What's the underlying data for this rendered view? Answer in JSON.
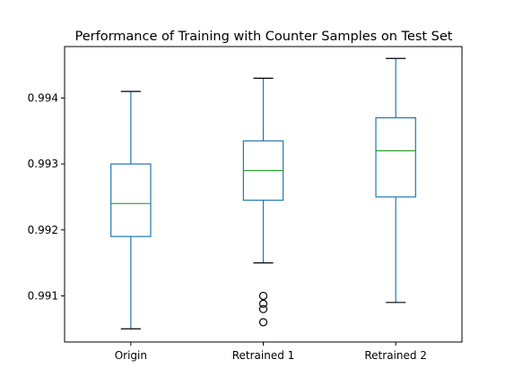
{
  "chart_data": {
    "type": "box",
    "title": "Performance of Training with Counter Samples on Test Set",
    "xlabel": "",
    "ylabel": "",
    "ylim": [
      0.9903,
      0.99478
    ],
    "yticks": [
      0.991,
      0.992,
      0.993,
      0.994
    ],
    "ytick_labels": [
      "0.991",
      "0.992",
      "0.993",
      "0.994"
    ],
    "grid": false,
    "categories": [
      "Origin",
      "Retrained 1",
      "Retrained 2"
    ],
    "boxes": [
      {
        "label": "Origin",
        "whisker_low": 0.9905,
        "q1": 0.9919,
        "median": 0.9924,
        "q3": 0.993,
        "whisker_high": 0.9941,
        "outliers": []
      },
      {
        "label": "Retrained 1",
        "whisker_low": 0.9915,
        "q1": 0.99245,
        "median": 0.9929,
        "q3": 0.99335,
        "whisker_high": 0.9943,
        "outliers": [
          0.991,
          0.99088,
          0.9908,
          0.9906
        ]
      },
      {
        "label": "Retrained 2",
        "whisker_low": 0.9909,
        "q1": 0.9925,
        "median": 0.9932,
        "q3": 0.9937,
        "whisker_high": 0.9946,
        "outliers": []
      }
    ],
    "colors": {
      "box": "#1f77b4",
      "median": "#2ca02c",
      "whisker_cap": "#000000",
      "outlier": "#000000"
    }
  }
}
